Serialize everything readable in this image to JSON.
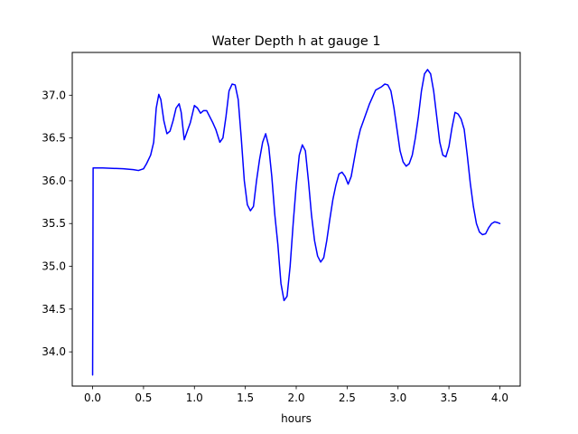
{
  "chart_data": {
    "type": "line",
    "title": "Water Depth h at gauge 1",
    "xlabel": "hours",
    "ylabel": "",
    "xlim": [
      -0.2,
      4.2
    ],
    "ylim": [
      33.6,
      37.5
    ],
    "x_ticks": [
      0.0,
      0.5,
      1.0,
      1.5,
      2.0,
      2.5,
      3.0,
      3.5,
      4.0
    ],
    "x_tick_labels": [
      "0.0",
      "0.5",
      "1.0",
      "1.5",
      "2.0",
      "2.5",
      "3.0",
      "3.5",
      "4.0"
    ],
    "y_ticks": [
      34.0,
      34.5,
      35.0,
      35.5,
      36.0,
      36.5,
      37.0
    ],
    "y_tick_labels": [
      "34.0",
      "34.5",
      "35.0",
      "35.5",
      "36.0",
      "36.5",
      "37.0"
    ],
    "grid": false,
    "legend": "none",
    "series": [
      {
        "color": "#0000ff",
        "x": [
          0.0,
          0.005,
          0.1,
          0.2,
          0.3,
          0.4,
          0.45,
          0.5,
          0.53,
          0.57,
          0.6,
          0.625,
          0.65,
          0.67,
          0.7,
          0.73,
          0.76,
          0.79,
          0.82,
          0.85,
          0.87,
          0.9,
          0.93,
          0.96,
          0.98,
          1.0,
          1.03,
          1.06,
          1.09,
          1.12,
          1.15,
          1.18,
          1.21,
          1.25,
          1.28,
          1.31,
          1.34,
          1.37,
          1.4,
          1.43,
          1.46,
          1.49,
          1.52,
          1.55,
          1.58,
          1.61,
          1.64,
          1.67,
          1.7,
          1.73,
          1.76,
          1.79,
          1.82,
          1.85,
          1.88,
          1.91,
          1.94,
          1.97,
          2.0,
          2.03,
          2.06,
          2.09,
          2.12,
          2.15,
          2.18,
          2.21,
          2.24,
          2.27,
          2.3,
          2.33,
          2.36,
          2.39,
          2.42,
          2.45,
          2.48,
          2.51,
          2.54,
          2.57,
          2.6,
          2.63,
          2.66,
          2.69,
          2.72,
          2.75,
          2.78,
          2.81,
          2.84,
          2.87,
          2.9,
          2.93,
          2.96,
          2.99,
          3.02,
          3.05,
          3.08,
          3.11,
          3.14,
          3.17,
          3.2,
          3.23,
          3.26,
          3.29,
          3.32,
          3.35,
          3.38,
          3.41,
          3.44,
          3.47,
          3.5,
          3.53,
          3.56,
          3.59,
          3.62,
          3.65,
          3.68,
          3.71,
          3.74,
          3.77,
          3.8,
          3.83,
          3.86,
          3.89,
          3.92,
          3.95,
          3.98,
          4.0
        ],
        "y": [
          33.73,
          36.15,
          36.15,
          36.145,
          36.14,
          36.13,
          36.12,
          36.14,
          36.2,
          36.3,
          36.45,
          36.85,
          37.01,
          36.95,
          36.7,
          36.55,
          36.58,
          36.7,
          36.85,
          36.9,
          36.8,
          36.48,
          36.58,
          36.68,
          36.78,
          36.88,
          36.85,
          36.79,
          36.82,
          36.82,
          36.75,
          36.68,
          36.6,
          36.45,
          36.5,
          36.75,
          37.05,
          37.13,
          37.12,
          36.95,
          36.5,
          36.0,
          35.72,
          35.65,
          35.7,
          36.0,
          36.25,
          36.45,
          36.55,
          36.4,
          36.05,
          35.6,
          35.25,
          34.8,
          34.6,
          34.65,
          35.0,
          35.5,
          35.95,
          36.3,
          36.42,
          36.35,
          36.0,
          35.6,
          35.3,
          35.12,
          35.05,
          35.1,
          35.3,
          35.55,
          35.78,
          35.95,
          36.08,
          36.1,
          36.05,
          35.96,
          36.05,
          36.25,
          36.45,
          36.6,
          36.7,
          36.8,
          36.9,
          36.98,
          37.06,
          37.08,
          37.1,
          37.13,
          37.12,
          37.05,
          36.85,
          36.6,
          36.35,
          36.22,
          36.17,
          36.2,
          36.3,
          36.5,
          36.75,
          37.05,
          37.25,
          37.3,
          37.25,
          37.05,
          36.75,
          36.45,
          36.3,
          36.28,
          36.4,
          36.62,
          36.8,
          36.78,
          36.72,
          36.6,
          36.3,
          35.97,
          35.7,
          35.5,
          35.4,
          35.37,
          35.38,
          35.45,
          35.5,
          35.52,
          35.51,
          35.5
        ]
      }
    ]
  }
}
